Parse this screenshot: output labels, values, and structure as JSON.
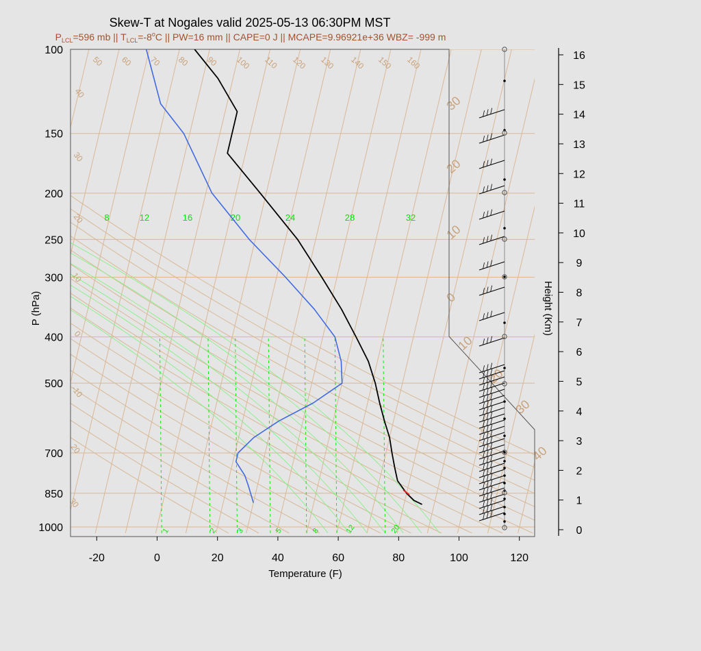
{
  "title": "Skew-T at Nogales valid 2025-05-13 06:30PM MST",
  "subtitle": {
    "p_main": "P",
    "p_sub": "LCL",
    "p_rest": "=596 mb || T",
    "t_sub": "LCL",
    "t_rest": "=-8",
    "deg": "o",
    "tail": "C || PW=16 mm || CAPE=0 J || MCAPE=9.96921e+36 WBZ= -999 m"
  },
  "colors": {
    "temperature": "#000000",
    "dewpoint": "#4169e1",
    "reference": "#d9b896",
    "reference_text": "#c8a27c",
    "mixing_ratio": "#00e600",
    "parcel_marker": "#e02020",
    "subtitle": "#a0522d"
  },
  "chart_data": {
    "type": "line",
    "chart_kind": "skew-T log-P diagram",
    "ylabel": "P (hPa)",
    "xlabel": "Temperature (F)",
    "y2label": "Height (Km)",
    "pressure_ticks": [
      "100",
      "150",
      "200",
      "250",
      "300",
      "400",
      "500",
      "700",
      "850",
      "1000"
    ],
    "temperature_ticks": [
      "-20",
      "0",
      "20",
      "40",
      "60",
      "80",
      "100",
      "120"
    ],
    "height_ticks": [
      "0",
      "1",
      "2",
      "3",
      "4",
      "5",
      "6",
      "7",
      "8",
      "9",
      "10",
      "11",
      "12",
      "13",
      "14",
      "15",
      "16"
    ],
    "xlim_F": [
      -28,
      125
    ],
    "ylim_hPa": [
      1030,
      100
    ],
    "y_scale": "log",
    "series": [
      {
        "name": "",
        "role": "temperature",
        "points": [
          {
            "p": 897,
            "t": 86
          },
          {
            "p": 880,
            "t": 83
          },
          {
            "p": 850,
            "t": 80
          },
          {
            "p": 800,
            "t": 76
          },
          {
            "p": 750,
            "t": 74
          },
          {
            "p": 700,
            "t": 72
          },
          {
            "p": 650,
            "t": 70
          },
          {
            "p": 600,
            "t": 67
          },
          {
            "p": 550,
            "t": 64
          },
          {
            "p": 500,
            "t": 61
          },
          {
            "p": 450,
            "t": 57
          },
          {
            "p": 400,
            "t": 51
          },
          {
            "p": 350,
            "t": 44
          },
          {
            "p": 300,
            "t": 35
          },
          {
            "p": 250,
            "t": 24
          },
          {
            "p": 200,
            "t": 8
          },
          {
            "p": 165,
            "t": -6
          },
          {
            "p": 135,
            "t": -6
          },
          {
            "p": 115,
            "t": -15
          },
          {
            "p": 100,
            "t": -25
          }
        ]
      },
      {
        "name": "",
        "role": "dewpoint",
        "points": [
          {
            "p": 890,
            "t": 30
          },
          {
            "p": 820,
            "t": 27
          },
          {
            "p": 780,
            "t": 25
          },
          {
            "p": 730,
            "t": 21
          },
          {
            "p": 700,
            "t": 21
          },
          {
            "p": 650,
            "t": 25
          },
          {
            "p": 600,
            "t": 32
          },
          {
            "p": 550,
            "t": 42
          },
          {
            "p": 500,
            "t": 50
          },
          {
            "p": 450,
            "t": 48
          },
          {
            "p": 400,
            "t": 44
          },
          {
            "p": 350,
            "t": 35
          },
          {
            "p": 300,
            "t": 23
          },
          {
            "p": 250,
            "t": 8
          },
          {
            "p": 200,
            "t": -8
          },
          {
            "p": 150,
            "t": -22
          },
          {
            "p": 130,
            "t": -32
          },
          {
            "p": 100,
            "t": -41
          }
        ]
      }
    ],
    "dry_adiabat_labels_F": [
      "50",
      "60",
      "70",
      "80",
      "90",
      "100",
      "110",
      "120",
      "130",
      "140",
      "150",
      "160"
    ],
    "isotherm_left_labels": [
      "40",
      "30",
      "20",
      "10",
      "0",
      "-10",
      "20",
      "30"
    ],
    "isotherm_right_labels": [
      "30",
      "20",
      "10",
      "0",
      "10",
      "20",
      "30",
      "40"
    ],
    "mixing_ratio_top_labels": [
      "8",
      "12",
      "16",
      "20",
      "24",
      "28",
      "32"
    ],
    "mixing_ratio_bottom_labels": [
      "1",
      "2",
      "3",
      "5",
      "8",
      "12",
      "20"
    ],
    "grid": true
  }
}
